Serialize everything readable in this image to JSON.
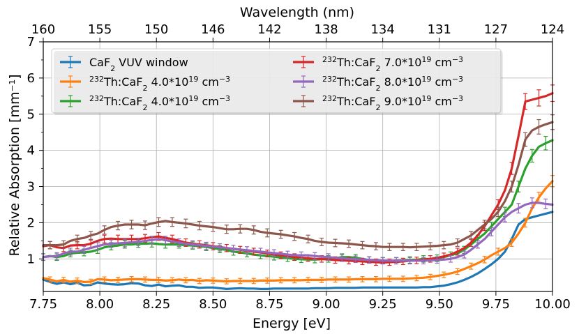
{
  "chart_data": {
    "type": "line",
    "title": "",
    "xlabel": "Energy [eV]",
    "ylabel": "Relative Absorption [mm⁻¹]",
    "top_xlabel": "Wavelength (nm)",
    "xlim": [
      7.75,
      10.0
    ],
    "ylim": [
      0.1,
      7.0
    ],
    "x_ticks": [
      7.75,
      8.0,
      8.25,
      8.5,
      8.75,
      9.0,
      9.25,
      9.5,
      9.75,
      10.0
    ],
    "x_tick_labels": [
      "7.75",
      "8.00",
      "8.25",
      "8.50",
      "8.75",
      "9.00",
      "9.25",
      "9.50",
      "9.75",
      "10.00"
    ],
    "y_ticks": [
      1,
      2,
      3,
      4,
      5,
      6,
      7
    ],
    "y_tick_labels": [
      "1",
      "2",
      "3",
      "4",
      "5",
      "6",
      "7"
    ],
    "top_ticks": [
      160,
      155,
      150,
      146,
      142,
      138,
      134,
      131,
      127,
      124
    ],
    "top_tick_labels": [
      "160",
      "155",
      "150",
      "146",
      "142",
      "138",
      "134",
      "131",
      "127",
      "124"
    ],
    "grid": true,
    "legend_position": "upper-left, two columns",
    "x": [
      7.75,
      7.78,
      7.81,
      7.84,
      7.87,
      7.9,
      7.93,
      7.96,
      7.99,
      8.02,
      8.05,
      8.08,
      8.11,
      8.14,
      8.17,
      8.2,
      8.23,
      8.26,
      8.29,
      8.32,
      8.35,
      8.38,
      8.41,
      8.44,
      8.47,
      8.5,
      8.53,
      8.56,
      8.59,
      8.62,
      8.65,
      8.68,
      8.71,
      8.74,
      8.77,
      8.8,
      8.83,
      8.86,
      8.89,
      8.92,
      8.95,
      8.98,
      9.01,
      9.04,
      9.07,
      9.1,
      9.13,
      9.16,
      9.19,
      9.22,
      9.25,
      9.28,
      9.31,
      9.34,
      9.37,
      9.4,
      9.43,
      9.46,
      9.49,
      9.52,
      9.55,
      9.58,
      9.61,
      9.64,
      9.67,
      9.7,
      9.73,
      9.76,
      9.79,
      9.82,
      9.85,
      9.88,
      9.91,
      9.94,
      9.97,
      10.0
    ],
    "series": [
      {
        "name": "CaF",
        "sub": "2",
        "rest": " VUV window",
        "color": "#1f77b4",
        "errorbars": false,
        "values": [
          0.43,
          0.36,
          0.31,
          0.35,
          0.3,
          0.34,
          0.27,
          0.28,
          0.35,
          0.32,
          0.3,
          0.29,
          0.3,
          0.33,
          0.32,
          0.27,
          0.25,
          0.29,
          0.24,
          0.26,
          0.27,
          0.23,
          0.23,
          0.2,
          0.21,
          0.21,
          0.19,
          0.17,
          0.18,
          0.19,
          0.18,
          0.18,
          0.17,
          0.17,
          0.18,
          0.18,
          0.18,
          0.18,
          0.18,
          0.18,
          0.19,
          0.19,
          0.19,
          0.2,
          0.2,
          0.2,
          0.2,
          0.21,
          0.21,
          0.21,
          0.21,
          0.21,
          0.21,
          0.21,
          0.21,
          0.21,
          0.22,
          0.22,
          0.24,
          0.26,
          0.3,
          0.35,
          0.42,
          0.5,
          0.6,
          0.72,
          0.85,
          1.0,
          1.2,
          1.55,
          1.95,
          2.1,
          2.15,
          2.2,
          2.25,
          2.3
        ]
      },
      {
        "name": "",
        "sup": "232",
        "label": "Th:CaF",
        "sub": "2",
        "rest": "  4.0*10",
        "sup2": "19",
        "unit": " cm",
        "sup3": "−3",
        "color": "#ff7f0e",
        "errorbars": true,
        "values": [
          0.47,
          0.43,
          0.38,
          0.42,
          0.37,
          0.4,
          0.36,
          0.37,
          0.44,
          0.43,
          0.41,
          0.42,
          0.43,
          0.44,
          0.44,
          0.43,
          0.42,
          0.42,
          0.4,
          0.41,
          0.43,
          0.41,
          0.42,
          0.39,
          0.41,
          0.4,
          0.39,
          0.38,
          0.39,
          0.39,
          0.39,
          0.39,
          0.4,
          0.4,
          0.4,
          0.41,
          0.41,
          0.41,
          0.41,
          0.42,
          0.42,
          0.42,
          0.43,
          0.43,
          0.43,
          0.43,
          0.44,
          0.44,
          0.44,
          0.44,
          0.45,
          0.45,
          0.45,
          0.45,
          0.46,
          0.47,
          0.48,
          0.5,
          0.53,
          0.56,
          0.6,
          0.65,
          0.72,
          0.8,
          0.88,
          0.98,
          1.1,
          1.2,
          1.3,
          1.45,
          1.7,
          2.0,
          2.4,
          2.7,
          2.95,
          3.15
        ]
      },
      {
        "name": "",
        "sup": "232",
        "label": "Th:CaF",
        "sub": "2",
        "rest": "  4.0*10",
        "sup2": "19",
        "unit": " cm",
        "sup3": "−3",
        "color": "#2ca02c",
        "errorbars": true,
        "values": [
          1.05,
          1.08,
          1.05,
          1.08,
          1.15,
          1.17,
          1.18,
          1.2,
          1.25,
          1.32,
          1.35,
          1.37,
          1.4,
          1.4,
          1.42,
          1.42,
          1.43,
          1.41,
          1.4,
          1.4,
          1.4,
          1.38,
          1.37,
          1.35,
          1.33,
          1.3,
          1.27,
          1.25,
          1.2,
          1.18,
          1.15,
          1.12,
          1.1,
          1.08,
          1.06,
          1.04,
          1.02,
          1.0,
          0.99,
          0.98,
          0.98,
          0.99,
          1.0,
          1.02,
          1.05,
          1.05,
          1.03,
          1.0,
          0.97,
          0.95,
          0.95,
          0.94,
          0.95,
          0.96,
          0.97,
          0.98,
          1.0,
          1.0,
          1.02,
          1.05,
          1.1,
          1.15,
          1.25,
          1.4,
          1.55,
          1.7,
          1.9,
          2.1,
          2.3,
          2.5,
          3.0,
          3.5,
          3.85,
          4.1,
          4.2,
          4.28
        ]
      },
      {
        "name": "",
        "sup": "232",
        "label": "Th:CaF",
        "sub": "2",
        "rest": "  7.0*10",
        "sup2": "19",
        "unit": " cm",
        "sup3": "−3",
        "color": "#d62728",
        "errorbars": true,
        "values": [
          1.35,
          1.38,
          1.32,
          1.3,
          1.37,
          1.38,
          1.38,
          1.42,
          1.5,
          1.55,
          1.56,
          1.55,
          1.55,
          1.55,
          1.55,
          1.57,
          1.6,
          1.62,
          1.58,
          1.55,
          1.5,
          1.45,
          1.42,
          1.4,
          1.38,
          1.35,
          1.33,
          1.3,
          1.28,
          1.25,
          1.22,
          1.2,
          1.18,
          1.15,
          1.12,
          1.1,
          1.08,
          1.05,
          1.03,
          1.02,
          1.0,
          1.0,
          0.98,
          0.97,
          0.96,
          0.95,
          0.94,
          0.93,
          0.92,
          0.91,
          0.9,
          0.91,
          0.92,
          0.93,
          0.95,
          0.96,
          0.98,
          1.0,
          1.03,
          1.07,
          1.12,
          1.2,
          1.3,
          1.45,
          1.65,
          1.9,
          2.2,
          2.5,
          2.9,
          3.5,
          4.4,
          5.35,
          5.4,
          5.45,
          5.5,
          5.58
        ]
      },
      {
        "name": "",
        "sup": "232",
        "label": "Th:CaF",
        "sub": "2",
        "rest": "  8.0*10",
        "sup2": "19",
        "unit": " cm",
        "sup3": "−3",
        "color": "#9467bd",
        "errorbars": true,
        "values": [
          1.05,
          1.07,
          1.08,
          1.15,
          1.2,
          1.2,
          1.25,
          1.3,
          1.35,
          1.4,
          1.42,
          1.43,
          1.44,
          1.46,
          1.47,
          1.5,
          1.52,
          1.55,
          1.52,
          1.48,
          1.45,
          1.42,
          1.4,
          1.38,
          1.36,
          1.34,
          1.32,
          1.3,
          1.28,
          1.26,
          1.24,
          1.22,
          1.2,
          1.18,
          1.16,
          1.14,
          1.12,
          1.1,
          1.1,
          1.1,
          1.08,
          1.06,
          1.05,
          1.03,
          1.02,
          1.0,
          0.99,
          0.98,
          0.97,
          0.96,
          0.95,
          0.95,
          0.95,
          0.95,
          0.95,
          0.95,
          0.95,
          0.96,
          0.97,
          0.98,
          1.0,
          1.05,
          1.12,
          1.25,
          1.4,
          1.55,
          1.75,
          1.95,
          2.15,
          2.3,
          2.4,
          2.5,
          2.55,
          2.55,
          2.52,
          2.5
        ]
      },
      {
        "name": "",
        "sup": "232",
        "label": "Th:CaF",
        "sub": "2",
        "rest": "  9.0*10",
        "sup2": "19",
        "unit": " cm",
        "sup3": "−3",
        "color": "#8c564b",
        "errorbars": true,
        "values": [
          1.38,
          1.38,
          1.38,
          1.4,
          1.5,
          1.55,
          1.58,
          1.65,
          1.7,
          1.8,
          1.88,
          1.92,
          1.95,
          1.95,
          1.95,
          1.93,
          1.98,
          2.02,
          2.05,
          2.02,
          2.0,
          1.98,
          1.95,
          1.92,
          1.9,
          1.88,
          1.85,
          1.82,
          1.82,
          1.83,
          1.83,
          1.8,
          1.75,
          1.72,
          1.7,
          1.68,
          1.65,
          1.62,
          1.58,
          1.55,
          1.5,
          1.47,
          1.45,
          1.44,
          1.43,
          1.42,
          1.4,
          1.38,
          1.36,
          1.35,
          1.33,
          1.33,
          1.33,
          1.33,
          1.32,
          1.33,
          1.34,
          1.35,
          1.36,
          1.38,
          1.4,
          1.45,
          1.55,
          1.65,
          1.8,
          1.95,
          2.1,
          2.3,
          2.6,
          3.0,
          3.6,
          4.3,
          4.55,
          4.65,
          4.72,
          4.78
        ]
      }
    ]
  }
}
